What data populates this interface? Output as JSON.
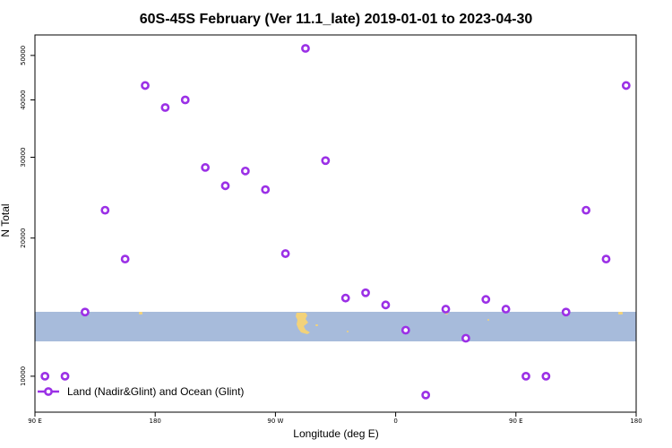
{
  "chart_data": {
    "type": "scatter",
    "title": "60S-45S February (Ver 11.1_late)   2019-01-01 to 2023-04-30",
    "xlabel": "Longitude (deg E)",
    "ylabel": "N Total",
    "y_scale": "log",
    "xlim": [
      90,
      540
    ],
    "ylim": [
      8700,
      57000
    ],
    "x_ticks": [
      {
        "value": 90,
        "label": "90 E"
      },
      {
        "value": 180,
        "label": "180"
      },
      {
        "value": 270,
        "label": "90 W"
      },
      {
        "value": 360,
        "label": "0"
      },
      {
        "value": 450,
        "label": "90 E"
      },
      {
        "value": 540,
        "label": "180"
      }
    ],
    "y_ticks": [
      {
        "value": 10000,
        "label": "10000"
      },
      {
        "value": 20000,
        "label": "20000"
      },
      {
        "value": 30000,
        "label": "30000"
      },
      {
        "value": 40000,
        "label": "40000"
      },
      {
        "value": 50000,
        "label": "50000"
      }
    ],
    "latitude_band": {
      "lat_min": -60,
      "lat_max": -45,
      "color": "#a7bbdb",
      "land_color": "#f2d27a"
    },
    "series": [
      {
        "name": "Land (Nadir&Glint) and Ocean (Glint)",
        "color": "#9b30e6",
        "marker": "open-circle",
        "x": [
          97.5,
          112.5,
          127.5,
          142.5,
          157.5,
          172.5,
          187.5,
          202.5,
          217.5,
          232.5,
          247.5,
          262.5,
          277.5,
          292.5,
          307.5,
          322.5,
          337.5,
          352.5,
          367.5,
          382.5,
          397.5,
          412.5,
          427.5,
          442.5,
          457.5,
          472.5,
          487.5,
          502.5,
          517.5,
          532.5
        ],
        "y": [
          10000,
          10000,
          13800,
          23000,
          18000,
          43000,
          38500,
          40000,
          28500,
          26000,
          28000,
          25500,
          18500,
          51800,
          29500,
          14800,
          15200,
          14300,
          12600,
          9100,
          14000,
          12100,
          14700,
          14000,
          10000,
          10000,
          13800,
          23000,
          18000,
          43000
        ]
      }
    ],
    "legend": {
      "placement": "bottom-left"
    },
    "grid": false
  }
}
